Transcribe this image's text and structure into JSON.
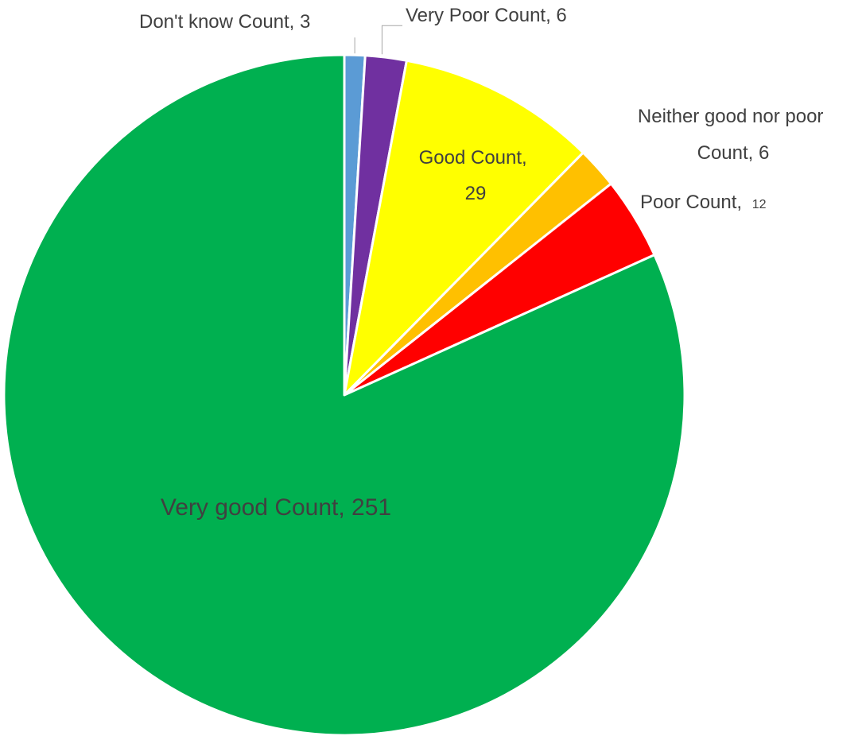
{
  "chart_data": {
    "type": "pie",
    "title": "",
    "start": "top, clockwise",
    "slices": [
      {
        "name": "Don't know",
        "label": "Don't know Count, 3",
        "value": 3,
        "color": "#5B9BD5"
      },
      {
        "name": "Very Poor",
        "label": "Very Poor Count, 6",
        "value": 6,
        "color": "#7030A0"
      },
      {
        "name": "Good",
        "label": "Good Count, 29",
        "label_lines": [
          "Good Count,",
          "29"
        ],
        "value": 29,
        "color": "#FFFF00"
      },
      {
        "name": "Neither good nor poor",
        "label": "Neither good nor poor Count, 6",
        "label_lines": [
          "Neither good nor poor",
          "Count, 6"
        ],
        "value": 6,
        "color": "#FFC000"
      },
      {
        "name": "Poor",
        "label": "Poor Count, 12",
        "label_main": "Poor Count,",
        "label_value": "12",
        "value": 12,
        "color": "#FF0000"
      },
      {
        "name": "Very good",
        "label": "Very good Count, 251",
        "value": 251,
        "color": "#00B050"
      }
    ]
  }
}
